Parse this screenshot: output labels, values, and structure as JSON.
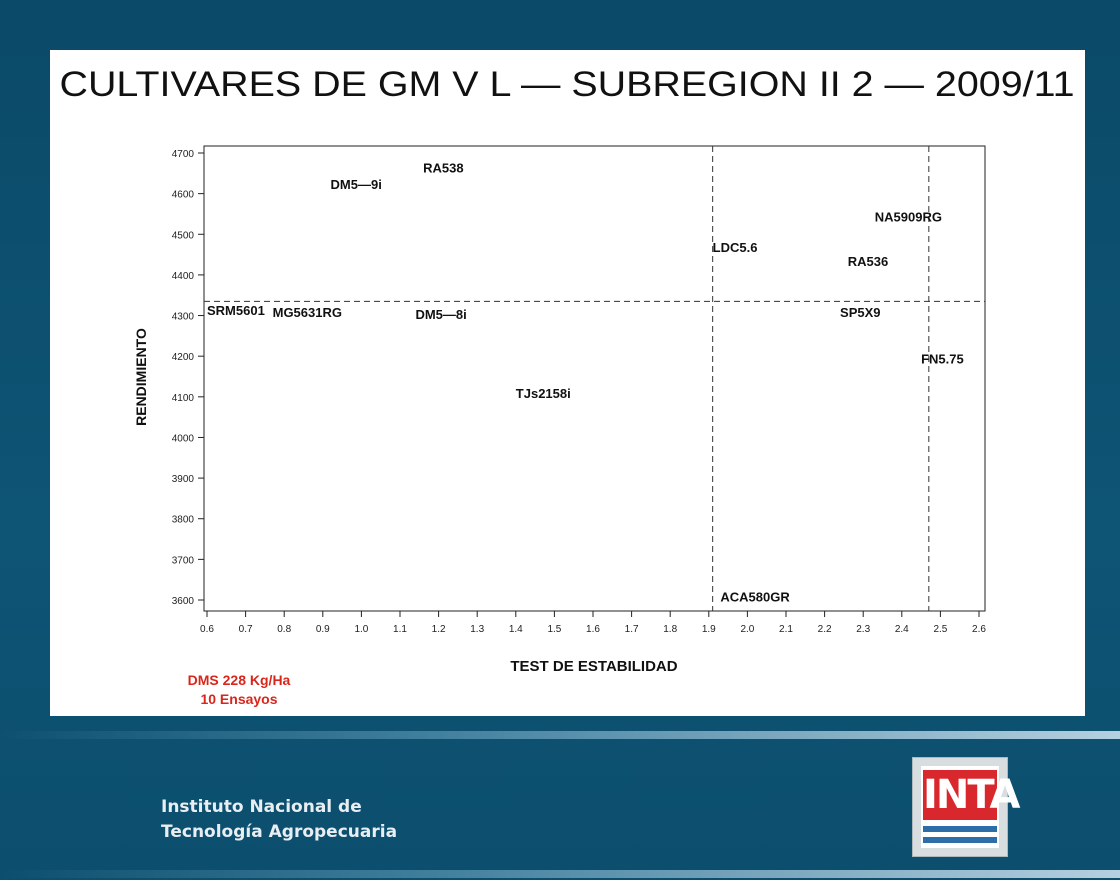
{
  "slide": {
    "dms_line1": "DMS 228 Kg/Ha",
    "dms_line2": "10 Ensayos",
    "org_line1": "Instituto Nacional de",
    "org_line2": "Tecnología Agropecuaria",
    "logo_text": "INTA"
  },
  "chart_data": {
    "type": "scatter",
    "title": "CULTIVARES DE GM V L — SUBREGION II 2 — 2009/11",
    "xlabel": "TEST DE ESTABILIDAD",
    "ylabel": "RENDIMIENTO",
    "xlim": [
      0.6,
      2.6
    ],
    "ylim": [
      3600,
      4700
    ],
    "x_ticks": [
      "0.6",
      "0.7",
      "0.8",
      "0.9",
      "1.0",
      "1.1",
      "1.2",
      "1.3",
      "1.4",
      "1.5",
      "1.6",
      "1.7",
      "1.8",
      "1.9",
      "2.0",
      "2.1",
      "2.2",
      "2.3",
      "2.4",
      "2.5",
      "2.6"
    ],
    "y_ticks": [
      "3600",
      "3700",
      "3800",
      "3900",
      "4000",
      "4100",
      "4200",
      "4300",
      "4400",
      "4500",
      "4600",
      "4700"
    ],
    "reference_lines": {
      "horizontal_y": 4335,
      "vertical_x": [
        1.91,
        2.47
      ]
    },
    "points": [
      {
        "label": "RA538",
        "x": 1.16,
        "y": 4660
      },
      {
        "label": "DM5—9i",
        "x": 0.92,
        "y": 4620
      },
      {
        "label": "NA5909RG",
        "x": 2.33,
        "y": 4540
      },
      {
        "label": "LDC5.6",
        "x": 1.91,
        "y": 4465
      },
      {
        "label": "RA536",
        "x": 2.26,
        "y": 4430
      },
      {
        "label": "SRM5601",
        "x": 0.6,
        "y": 4310
      },
      {
        "label": "MG5631RG",
        "x": 0.77,
        "y": 4305
      },
      {
        "label": "DM5—8i",
        "x": 1.14,
        "y": 4300
      },
      {
        "label": "SP5X9",
        "x": 2.24,
        "y": 4305
      },
      {
        "label": "FN5.75",
        "x": 2.45,
        "y": 4190
      },
      {
        "label": "TJs2158i",
        "x": 1.4,
        "y": 4105
      },
      {
        "label": "ACA580GR",
        "x": 1.93,
        "y": 3605
      }
    ]
  }
}
